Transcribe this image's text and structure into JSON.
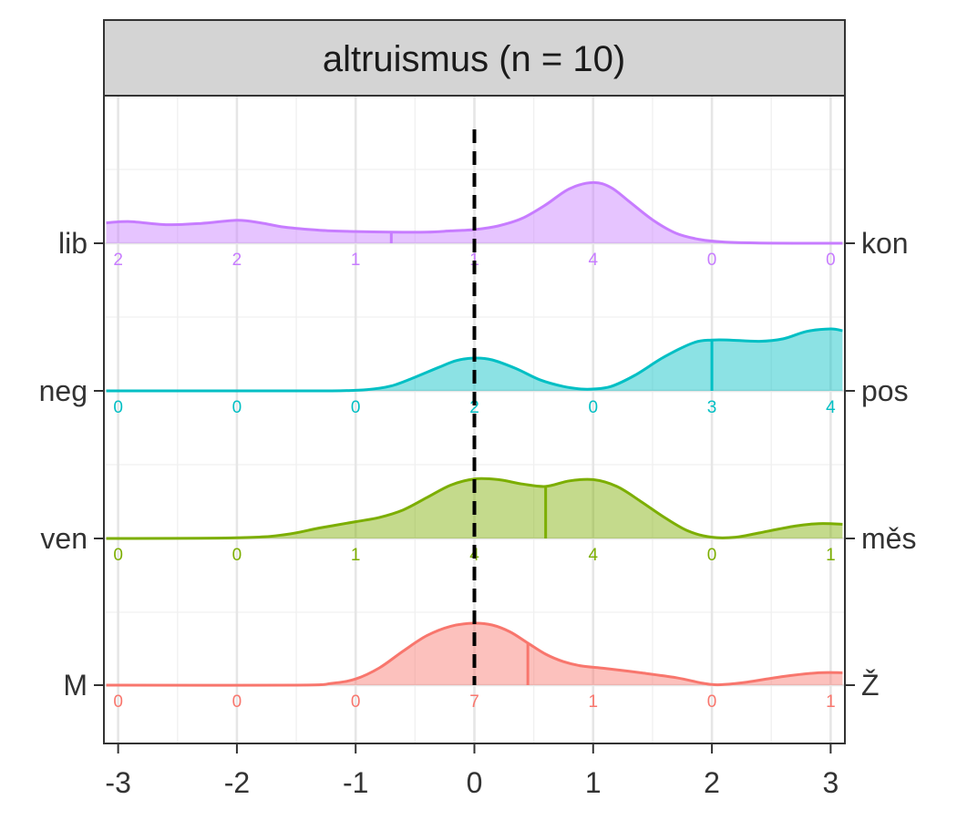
{
  "chart_data": {
    "type": "ridgeline",
    "title": "altruismus (n = 10)",
    "xlabel": "",
    "ylabel": "",
    "xlim": [
      -3.12,
      3.12
    ],
    "x_ticks": [
      -3,
      -2,
      -1,
      0,
      1,
      2,
      3
    ],
    "x_tick_labels": [
      "-3",
      "-2",
      "-1",
      "0",
      "1",
      "2",
      "3"
    ],
    "reference_line": {
      "x": 0,
      "style": "dashed",
      "color": "#000000"
    },
    "grid": true,
    "count_positions": [
      -3,
      -2,
      -1,
      0,
      1,
      2,
      3
    ],
    "series": [
      {
        "left_label": "lib",
        "right_label": "kon",
        "color": "#C77CFF",
        "counts": [
          2,
          2,
          1,
          1,
          4,
          0,
          0
        ],
        "mean": -0.7,
        "density": [
          [
            -3.1,
            0.33
          ],
          [
            -2.9,
            0.35
          ],
          [
            -2.6,
            0.3
          ],
          [
            -2.3,
            0.32
          ],
          [
            -2.0,
            0.37
          ],
          [
            -1.8,
            0.33
          ],
          [
            -1.6,
            0.26
          ],
          [
            -1.3,
            0.21
          ],
          [
            -1.0,
            0.19
          ],
          [
            -0.7,
            0.18
          ],
          [
            -0.4,
            0.18
          ],
          [
            -0.2,
            0.2
          ],
          [
            0.0,
            0.22
          ],
          [
            0.2,
            0.28
          ],
          [
            0.4,
            0.4
          ],
          [
            0.6,
            0.62
          ],
          [
            0.8,
            0.88
          ],
          [
            1.0,
            0.98
          ],
          [
            1.15,
            0.9
          ],
          [
            1.3,
            0.68
          ],
          [
            1.5,
            0.38
          ],
          [
            1.7,
            0.16
          ],
          [
            1.9,
            0.06
          ],
          [
            2.1,
            0.02
          ],
          [
            2.4,
            0.005
          ],
          [
            2.7,
            0.0
          ],
          [
            3.1,
            0.0
          ]
        ]
      },
      {
        "left_label": "neg",
        "right_label": "pos",
        "color": "#00BFC4",
        "counts": [
          0,
          0,
          0,
          2,
          0,
          3,
          4
        ],
        "mean": 2.0,
        "density": [
          [
            -3.1,
            0.0
          ],
          [
            -2.0,
            0.0
          ],
          [
            -1.2,
            0.0
          ],
          [
            -0.9,
            0.02
          ],
          [
            -0.7,
            0.08
          ],
          [
            -0.5,
            0.22
          ],
          [
            -0.3,
            0.38
          ],
          [
            -0.15,
            0.49
          ],
          [
            0.0,
            0.53
          ],
          [
            0.15,
            0.5
          ],
          [
            0.35,
            0.36
          ],
          [
            0.55,
            0.18
          ],
          [
            0.75,
            0.07
          ],
          [
            0.9,
            0.03
          ],
          [
            1.0,
            0.03
          ],
          [
            1.15,
            0.07
          ],
          [
            1.35,
            0.25
          ],
          [
            1.6,
            0.55
          ],
          [
            1.85,
            0.78
          ],
          [
            2.0,
            0.82
          ],
          [
            2.15,
            0.82
          ],
          [
            2.4,
            0.8
          ],
          [
            2.6,
            0.84
          ],
          [
            2.8,
            0.96
          ],
          [
            3.0,
            1.0
          ],
          [
            3.1,
            0.97
          ]
        ]
      },
      {
        "left_label": "ven",
        "right_label": "měs",
        "color": "#7CAE00",
        "counts": [
          0,
          0,
          1,
          4,
          4,
          0,
          1
        ],
        "mean": 0.6,
        "density": [
          [
            -3.1,
            0.0
          ],
          [
            -2.0,
            0.01
          ],
          [
            -1.6,
            0.06
          ],
          [
            -1.3,
            0.17
          ],
          [
            -1.0,
            0.27
          ],
          [
            -0.8,
            0.34
          ],
          [
            -0.6,
            0.46
          ],
          [
            -0.4,
            0.66
          ],
          [
            -0.2,
            0.86
          ],
          [
            0.0,
            0.96
          ],
          [
            0.2,
            0.95
          ],
          [
            0.4,
            0.88
          ],
          [
            0.6,
            0.84
          ],
          [
            0.8,
            0.93
          ],
          [
            1.0,
            0.95
          ],
          [
            1.2,
            0.84
          ],
          [
            1.4,
            0.6
          ],
          [
            1.6,
            0.34
          ],
          [
            1.8,
            0.12
          ],
          [
            2.0,
            0.02
          ],
          [
            2.2,
            0.02
          ],
          [
            2.4,
            0.09
          ],
          [
            2.7,
            0.2
          ],
          [
            2.9,
            0.24
          ],
          [
            3.1,
            0.23
          ]
        ]
      },
      {
        "left_label": "M",
        "right_label": "Ž",
        "color": "#F8766D",
        "counts": [
          0,
          0,
          0,
          7,
          1,
          0,
          1
        ],
        "mean": 0.45,
        "density": [
          [
            -3.1,
            0.0
          ],
          [
            -1.5,
            0.0
          ],
          [
            -1.2,
            0.03
          ],
          [
            -1.0,
            0.1
          ],
          [
            -0.8,
            0.28
          ],
          [
            -0.6,
            0.55
          ],
          [
            -0.4,
            0.8
          ],
          [
            -0.2,
            0.95
          ],
          [
            0.0,
            1.0
          ],
          [
            0.15,
            0.97
          ],
          [
            0.3,
            0.86
          ],
          [
            0.45,
            0.68
          ],
          [
            0.6,
            0.5
          ],
          [
            0.75,
            0.38
          ],
          [
            0.9,
            0.31
          ],
          [
            1.1,
            0.27
          ],
          [
            1.4,
            0.2
          ],
          [
            1.7,
            0.12
          ],
          [
            1.9,
            0.04
          ],
          [
            2.0,
            0.01
          ],
          [
            2.1,
            0.01
          ],
          [
            2.3,
            0.05
          ],
          [
            2.6,
            0.14
          ],
          [
            2.9,
            0.2
          ],
          [
            3.1,
            0.2
          ]
        ]
      }
    ]
  }
}
